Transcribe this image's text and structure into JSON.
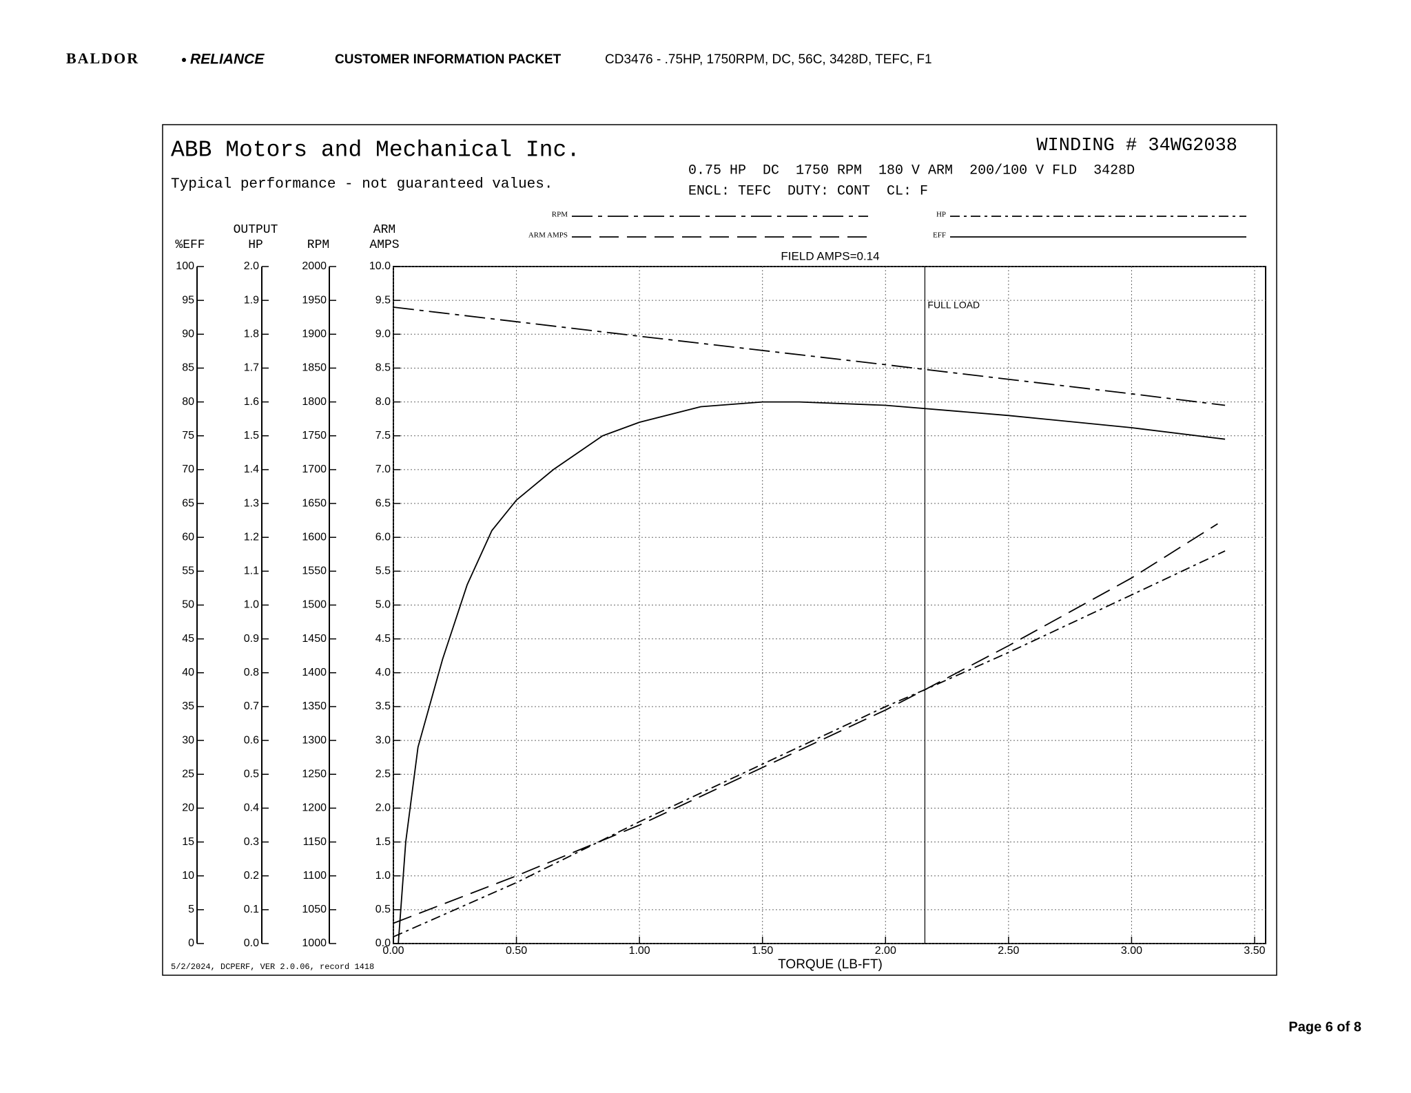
{
  "header": {
    "logo_left": "BALDOR",
    "logo_right": "RELIANCE",
    "packet": "CUSTOMER INFORMATION PACKET",
    "model": "CD3476 - .75HP, 1750RPM, DC, 56C, 3428D, TEFC, F1"
  },
  "footer": {
    "page": "Page 6 of 8"
  },
  "chart_data": {
    "type": "line",
    "title": "ABB Motors and Mechanical Inc.",
    "subtitle": "Typical performance - not guaranteed values.",
    "winding": "WINDING # 34WG2038",
    "specs": [
      "0.75 HP  DC  1750 RPM  180 V ARM  200/100 V FLD  3428D",
      "ENCL: TEFC  DUTY: CONT  CL: F"
    ],
    "field_amps": "FIELD AMPS=0.14",
    "note": "5/2/2024, DCPERF, VER 2.0.06, record 1418",
    "x_label": "TORQUE (LB-FT)",
    "xlim": [
      0,
      3.5
    ],
    "xticks": [
      {
        "value": 0,
        "label": "0.00"
      },
      {
        "value": 0.5,
        "label": "0.50"
      },
      {
        "value": 1,
        "label": "1.00"
      },
      {
        "value": 1.5,
        "label": "1.50"
      },
      {
        "value": 2,
        "label": "2.00"
      },
      {
        "value": 2.5,
        "label": "2.50"
      },
      {
        "value": 3,
        "label": "3.00"
      },
      {
        "value": 3.5,
        "label": "3.50"
      }
    ],
    "grid": true,
    "full_load": {
      "x": 2.16,
      "label": "FULL LOAD"
    },
    "y_axes": {
      "eff": {
        "title": [
          "%EFF"
        ],
        "lim": [
          0,
          100
        ],
        "ticks": [
          0,
          5,
          10,
          15,
          20,
          25,
          30,
          35,
          40,
          45,
          50,
          55,
          60,
          65,
          70,
          75,
          80,
          85,
          90,
          95,
          100
        ]
      },
      "hp": {
        "title": [
          "OUTPUT",
          "HP"
        ],
        "lim": [
          0,
          2
        ],
        "ticks": [
          {
            "value": 0,
            "label": "0.0"
          },
          0.1,
          0.2,
          0.3,
          0.4,
          0.5,
          0.6,
          0.7,
          0.8,
          0.9,
          {
            "value": 1,
            "label": "1.0"
          },
          1.1,
          1.2,
          1.3,
          1.4,
          1.5,
          1.6,
          1.7,
          1.8,
          1.9,
          {
            "value": 2,
            "label": "2.0"
          }
        ]
      },
      "rpm": {
        "title": [
          "RPM"
        ],
        "lim": [
          1000,
          2000
        ],
        "ticks": [
          1000,
          1050,
          1100,
          1150,
          1200,
          1250,
          1300,
          1350,
          1400,
          1450,
          1500,
          1550,
          1600,
          1650,
          1700,
          1750,
          1800,
          1850,
          1900,
          1950,
          2000
        ]
      },
      "amps": {
        "title": [
          "ARM",
          "AMPS"
        ],
        "lim": [
          0,
          10
        ],
        "ticks": [
          {
            "value": 0,
            "label": "0.0"
          },
          0.5,
          {
            "value": 1,
            "label": "1.0"
          },
          1.5,
          {
            "value": 2,
            "label": "2.0"
          },
          2.5,
          {
            "value": 3,
            "label": "3.0"
          },
          3.5,
          {
            "value": 4,
            "label": "4.0"
          },
          4.5,
          {
            "value": 5,
            "label": "5.0"
          },
          5.5,
          {
            "value": 6,
            "label": "6.0"
          },
          6.5,
          {
            "value": 7,
            "label": "7.0"
          },
          7.5,
          {
            "value": 8,
            "label": "8.0"
          },
          8.5,
          {
            "value": 9,
            "label": "9.0"
          },
          9.5,
          {
            "value": 10,
            "label": "10.0"
          }
        ]
      }
    },
    "series": [
      {
        "name": "RPM",
        "axis": "rpm",
        "color": "#000000",
        "dash": "30 8 6 8",
        "x": [
          0,
          1,
          2,
          2.16,
          3,
          3.38
        ],
        "values": [
          1940,
          1897,
          1855,
          1848,
          1812,
          1795
        ]
      },
      {
        "name": "ARM AMPS",
        "axis": "amps",
        "color": "#000000",
        "dash": "28 12",
        "x": [
          0,
          0.5,
          1,
          1.5,
          2,
          2.16,
          2.5,
          3,
          3.35
        ],
        "values": [
          0.3,
          1.0,
          1.75,
          2.6,
          3.45,
          3.75,
          4.4,
          5.4,
          6.2
        ]
      },
      {
        "name": "HP",
        "axis": "hp",
        "color": "#000000",
        "dash": "14 6 4 6",
        "x": [
          0,
          0.5,
          1,
          1.5,
          2,
          2.16,
          2.5,
          3,
          3.38
        ],
        "values": [
          0.02,
          0.18,
          0.36,
          0.53,
          0.7,
          0.75,
          0.86,
          1.03,
          1.16
        ]
      },
      {
        "name": "EFF",
        "axis": "eff",
        "color": "#000000",
        "dash": "none",
        "x": [
          0.02,
          0.05,
          0.1,
          0.2,
          0.3,
          0.4,
          0.5,
          0.65,
          0.85,
          1,
          1.25,
          1.5,
          1.65,
          2,
          2.5,
          3,
          3.38
        ],
        "values": [
          0,
          15,
          29,
          42,
          53,
          61,
          65.5,
          70,
          75,
          77,
          79.3,
          80,
          80,
          79.5,
          78,
          76.2,
          74.5
        ]
      }
    ]
  }
}
